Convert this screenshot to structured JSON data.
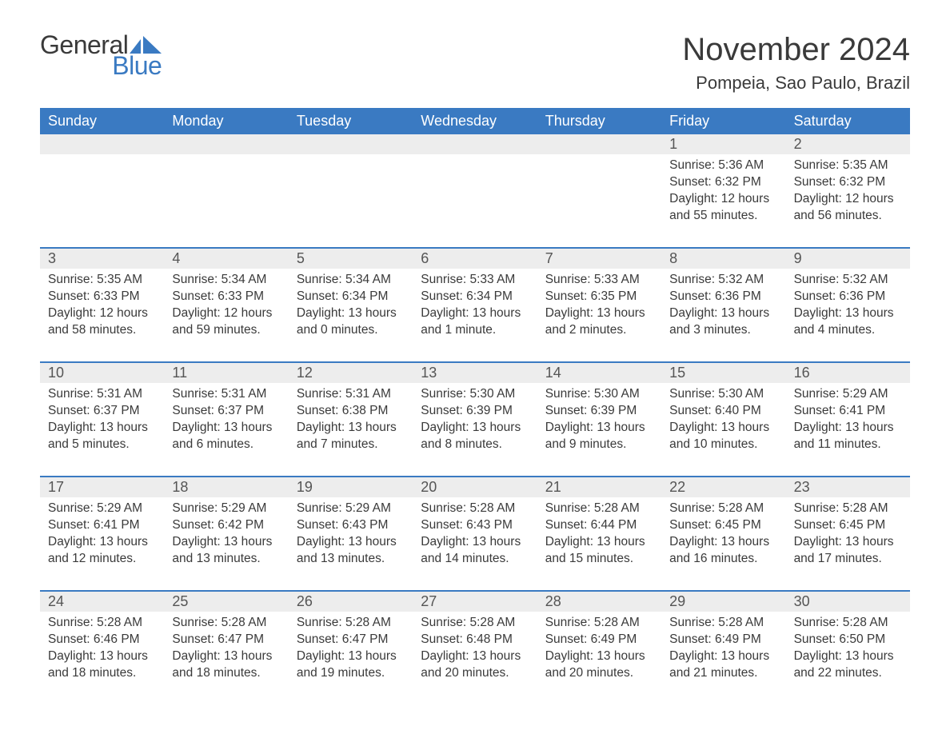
{
  "logo": {
    "word1": "General",
    "word2": "Blue",
    "accent_color": "#3a7ac2"
  },
  "header": {
    "month_title": "November 2024",
    "location": "Pompeia, Sao Paulo, Brazil"
  },
  "colors": {
    "header_bg": "#3a7ac2",
    "header_text": "#ffffff",
    "daynum_bg": "#ededed",
    "body_text": "#3a3a3a",
    "page_bg": "#ffffff"
  },
  "days_of_week": [
    "Sunday",
    "Monday",
    "Tuesday",
    "Wednesday",
    "Thursday",
    "Friday",
    "Saturday"
  ],
  "leading_blanks": 5,
  "days": [
    {
      "n": 1,
      "sunrise": "5:36 AM",
      "sunset": "6:32 PM",
      "daylight": "12 hours and 55 minutes."
    },
    {
      "n": 2,
      "sunrise": "5:35 AM",
      "sunset": "6:32 PM",
      "daylight": "12 hours and 56 minutes."
    },
    {
      "n": 3,
      "sunrise": "5:35 AM",
      "sunset": "6:33 PM",
      "daylight": "12 hours and 58 minutes."
    },
    {
      "n": 4,
      "sunrise": "5:34 AM",
      "sunset": "6:33 PM",
      "daylight": "12 hours and 59 minutes."
    },
    {
      "n": 5,
      "sunrise": "5:34 AM",
      "sunset": "6:34 PM",
      "daylight": "13 hours and 0 minutes."
    },
    {
      "n": 6,
      "sunrise": "5:33 AM",
      "sunset": "6:34 PM",
      "daylight": "13 hours and 1 minute."
    },
    {
      "n": 7,
      "sunrise": "5:33 AM",
      "sunset": "6:35 PM",
      "daylight": "13 hours and 2 minutes."
    },
    {
      "n": 8,
      "sunrise": "5:32 AM",
      "sunset": "6:36 PM",
      "daylight": "13 hours and 3 minutes."
    },
    {
      "n": 9,
      "sunrise": "5:32 AM",
      "sunset": "6:36 PM",
      "daylight": "13 hours and 4 minutes."
    },
    {
      "n": 10,
      "sunrise": "5:31 AM",
      "sunset": "6:37 PM",
      "daylight": "13 hours and 5 minutes."
    },
    {
      "n": 11,
      "sunrise": "5:31 AM",
      "sunset": "6:37 PM",
      "daylight": "13 hours and 6 minutes."
    },
    {
      "n": 12,
      "sunrise": "5:31 AM",
      "sunset": "6:38 PM",
      "daylight": "13 hours and 7 minutes."
    },
    {
      "n": 13,
      "sunrise": "5:30 AM",
      "sunset": "6:39 PM",
      "daylight": "13 hours and 8 minutes."
    },
    {
      "n": 14,
      "sunrise": "5:30 AM",
      "sunset": "6:39 PM",
      "daylight": "13 hours and 9 minutes."
    },
    {
      "n": 15,
      "sunrise": "5:30 AM",
      "sunset": "6:40 PM",
      "daylight": "13 hours and 10 minutes."
    },
    {
      "n": 16,
      "sunrise": "5:29 AM",
      "sunset": "6:41 PM",
      "daylight": "13 hours and 11 minutes."
    },
    {
      "n": 17,
      "sunrise": "5:29 AM",
      "sunset": "6:41 PM",
      "daylight": "13 hours and 12 minutes."
    },
    {
      "n": 18,
      "sunrise": "5:29 AM",
      "sunset": "6:42 PM",
      "daylight": "13 hours and 13 minutes."
    },
    {
      "n": 19,
      "sunrise": "5:29 AM",
      "sunset": "6:43 PM",
      "daylight": "13 hours and 13 minutes."
    },
    {
      "n": 20,
      "sunrise": "5:28 AM",
      "sunset": "6:43 PM",
      "daylight": "13 hours and 14 minutes."
    },
    {
      "n": 21,
      "sunrise": "5:28 AM",
      "sunset": "6:44 PM",
      "daylight": "13 hours and 15 minutes."
    },
    {
      "n": 22,
      "sunrise": "5:28 AM",
      "sunset": "6:45 PM",
      "daylight": "13 hours and 16 minutes."
    },
    {
      "n": 23,
      "sunrise": "5:28 AM",
      "sunset": "6:45 PM",
      "daylight": "13 hours and 17 minutes."
    },
    {
      "n": 24,
      "sunrise": "5:28 AM",
      "sunset": "6:46 PM",
      "daylight": "13 hours and 18 minutes."
    },
    {
      "n": 25,
      "sunrise": "5:28 AM",
      "sunset": "6:47 PM",
      "daylight": "13 hours and 18 minutes."
    },
    {
      "n": 26,
      "sunrise": "5:28 AM",
      "sunset": "6:47 PM",
      "daylight": "13 hours and 19 minutes."
    },
    {
      "n": 27,
      "sunrise": "5:28 AM",
      "sunset": "6:48 PM",
      "daylight": "13 hours and 20 minutes."
    },
    {
      "n": 28,
      "sunrise": "5:28 AM",
      "sunset": "6:49 PM",
      "daylight": "13 hours and 20 minutes."
    },
    {
      "n": 29,
      "sunrise": "5:28 AM",
      "sunset": "6:49 PM",
      "daylight": "13 hours and 21 minutes."
    },
    {
      "n": 30,
      "sunrise": "5:28 AM",
      "sunset": "6:50 PM",
      "daylight": "13 hours and 22 minutes."
    }
  ],
  "labels": {
    "sunrise": "Sunrise: ",
    "sunset": "Sunset: ",
    "daylight": "Daylight: "
  }
}
